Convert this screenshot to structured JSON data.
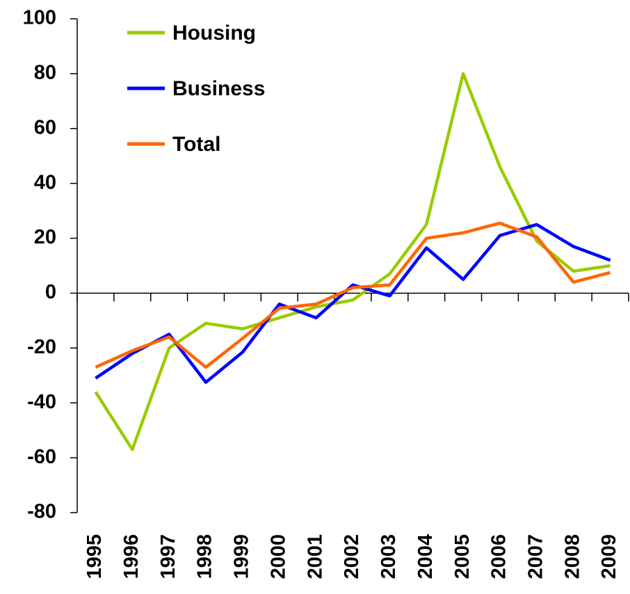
{
  "chart_data": {
    "type": "line",
    "categories": [
      "1995",
      "1996",
      "1997",
      "1998",
      "1999",
      "2000",
      "2001",
      "2002",
      "2003",
      "2004",
      "2005",
      "2006",
      "2007",
      "2008",
      "2009"
    ],
    "series": [
      {
        "name": "Housing",
        "color": "#99cc00",
        "values": [
          -36,
          -57,
          -20,
          -11,
          -13,
          -9,
          -5,
          -2.5,
          7,
          25,
          80,
          46,
          19,
          8,
          10
        ]
      },
      {
        "name": "Business",
        "color": "#0000ff",
        "values": [
          -31,
          -22,
          -15,
          -32.5,
          -21.5,
          -4,
          -9,
          3,
          -1,
          16.5,
          5,
          21,
          25,
          17,
          12
        ]
      },
      {
        "name": "Total",
        "color": "#ff6600",
        "values": [
          -27,
          -21,
          -16,
          -27,
          -16.5,
          -5.5,
          -4,
          2,
          3,
          20,
          22,
          25.5,
          20.5,
          4,
          7.5
        ]
      }
    ],
    "ylim": [
      -80,
      100
    ],
    "yticks": [
      -80,
      -60,
      -40,
      -20,
      0,
      20,
      40,
      60,
      80,
      100
    ],
    "legend": "top-left"
  }
}
